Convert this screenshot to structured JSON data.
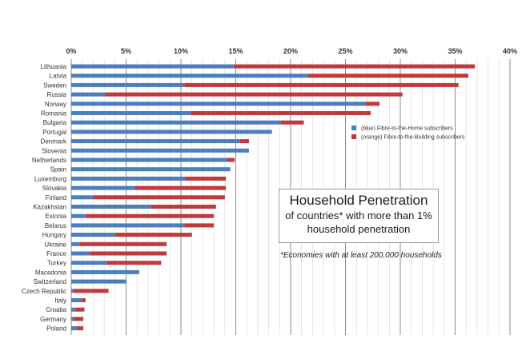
{
  "chart_data": {
    "type": "bar",
    "orientation": "horizontal",
    "stacked": true,
    "title": "Household Penetration",
    "subtitle": "of countries* with more than 1% household penetration",
    "footnote": "*Economies with at least 200,000 households",
    "xlim": [
      0,
      40
    ],
    "x_ticks": [
      "0%",
      "5%",
      "10%",
      "15%",
      "20%",
      "25%",
      "30%",
      "35%",
      "40%"
    ],
    "grid": true,
    "legend_position": "right",
    "categories": [
      "Lithuania",
      "Latvia",
      "Sweden",
      "Russia",
      "Norway",
      "Romania",
      "Bulgaria",
      "Portugal",
      "Denmark",
      "Slovenia",
      "Netherlands",
      "Spain",
      "Luxemburg",
      "Slovakia",
      "Finland",
      "Kazakhstan",
      "Estonia",
      "Belarus",
      "Hungary",
      "Ukraine",
      "France",
      "Turkey",
      "Macedonia",
      "Switzerland",
      "Czech Republic",
      "Italy",
      "Croatia",
      "Germany",
      "Poland"
    ],
    "series": [
      {
        "name": "(blue) Fibre-to-the-Home subscribers",
        "color": "#4a7ebf",
        "values": [
          14.8,
          21.6,
          10.3,
          3.1,
          26.8,
          10.9,
          19.1,
          18.3,
          15.4,
          16.2,
          14.2,
          14.5,
          10.4,
          5.8,
          2.0,
          7.3,
          1.3,
          10.3,
          4.0,
          0.8,
          1.7,
          3.2,
          6.2,
          5.0,
          0.2,
          1.0,
          0.4,
          0.2,
          0.5
        ]
      },
      {
        "name": "(orange) Fibre-to-the-Building subscribers",
        "color": "#c0393b",
        "values": [
          22.0,
          14.6,
          25.0,
          27.1,
          1.3,
          16.4,
          2.1,
          0,
          0.8,
          0,
          0.7,
          0,
          3.7,
          8.3,
          12.0,
          5.9,
          11.7,
          2.7,
          7.0,
          7.9,
          7.0,
          5.0,
          0,
          0,
          3.2,
          0.3,
          0.8,
          0.9,
          0.6
        ]
      }
    ]
  }
}
